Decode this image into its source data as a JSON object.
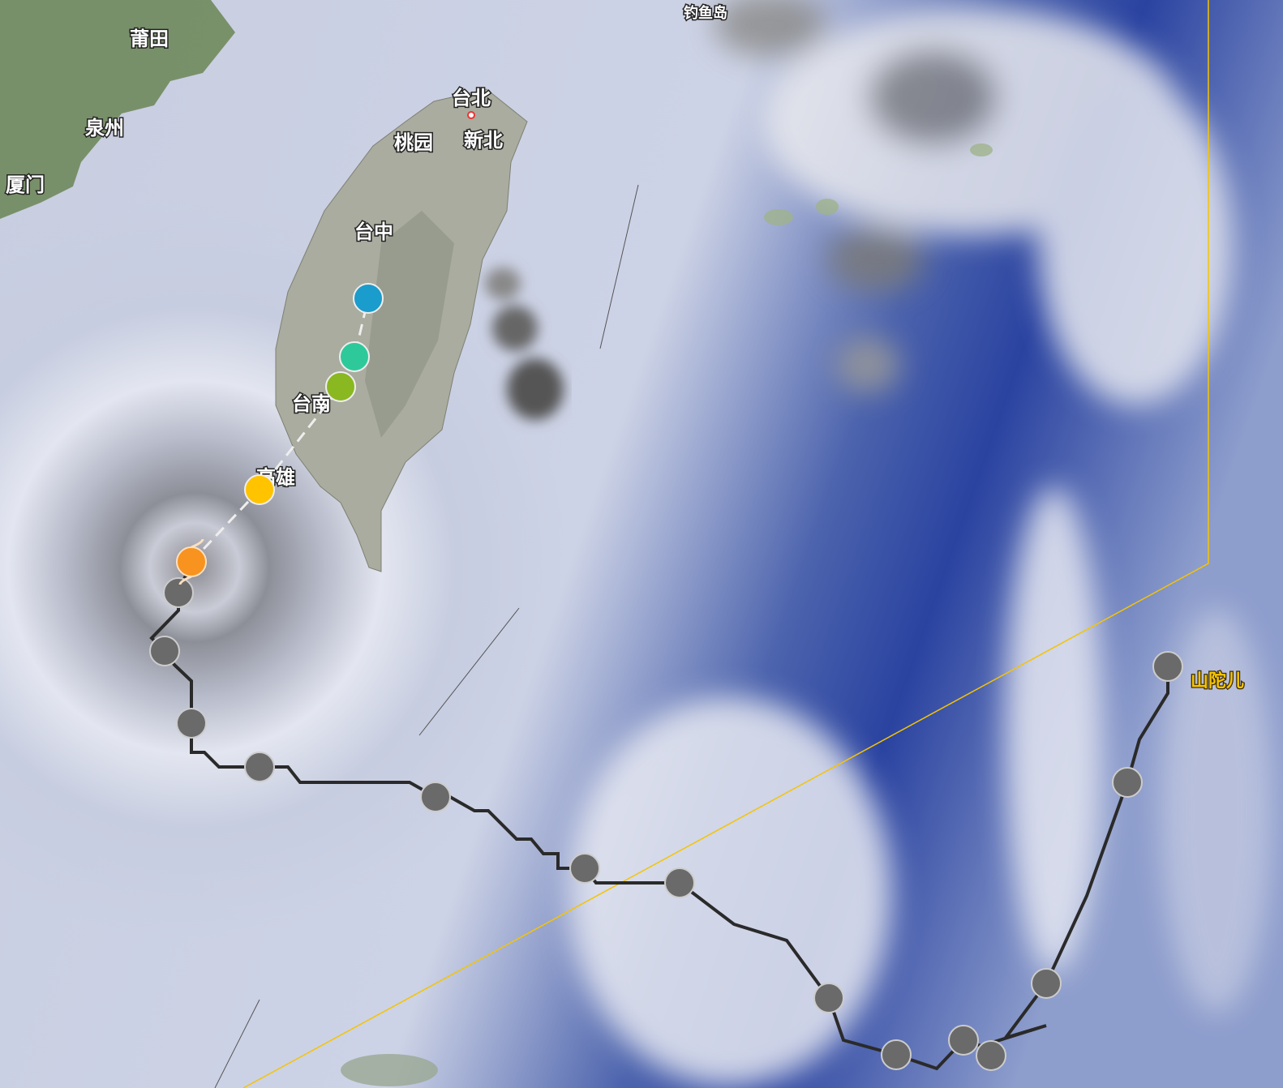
{
  "map": {
    "cities": [
      {
        "name": "莆田"
      },
      {
        "name": "泉州"
      },
      {
        "name": "厦门"
      },
      {
        "name": "台北"
      },
      {
        "name": "桃园"
      },
      {
        "name": "新北"
      },
      {
        "name": "台中"
      },
      {
        "name": "台南"
      },
      {
        "name": "高雄"
      },
      {
        "name": "钓鱼岛"
      }
    ],
    "typhoon": {
      "name": "山陀儿",
      "label_color": "#f5c400",
      "past_track_color": "#2a2a2a",
      "past_point_color": "#6a6a6a",
      "current_icon": "typhoon-icon",
      "current_color": "#f7931e",
      "forecast_point_colors": [
        "#ffc300",
        "#8ab820",
        "#2ec99a",
        "#1a9ccc"
      ],
      "forecast_line": "dashed white"
    },
    "warning_line_color": "#f5c400"
  }
}
